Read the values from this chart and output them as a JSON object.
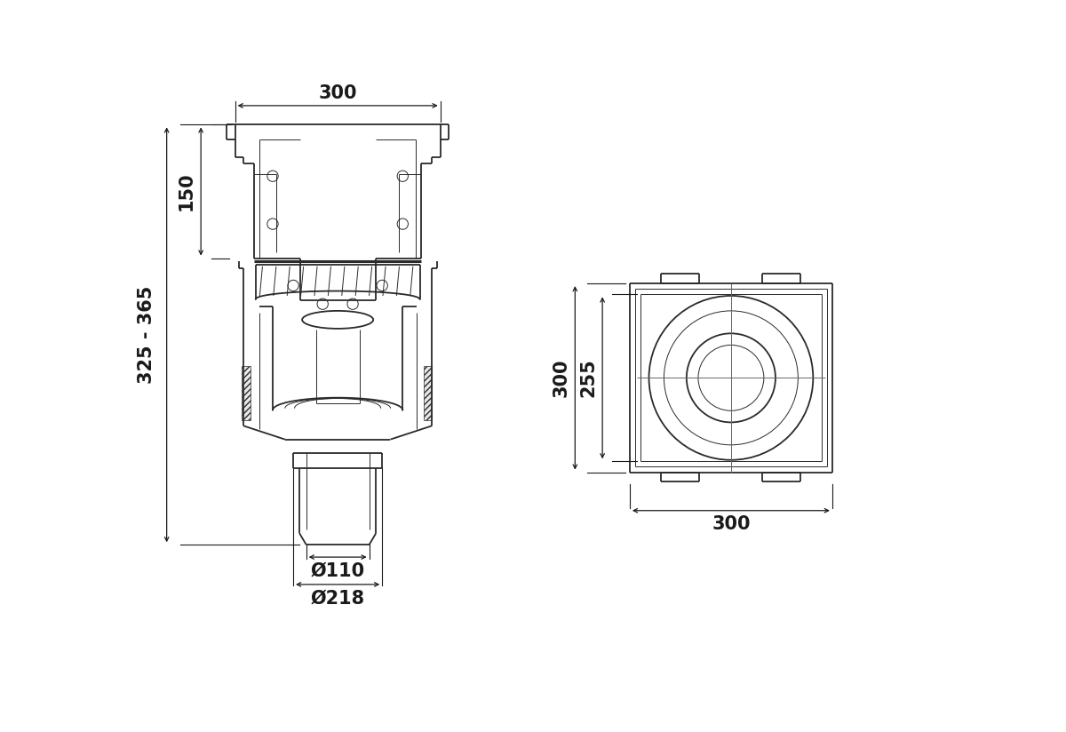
{
  "bg_color": "#ffffff",
  "line_color": "#2a2a2a",
  "dim_color": "#1a1a1a",
  "lw_main": 1.3,
  "lw_thin": 0.7,
  "lw_thick": 2.2,
  "annotations": {
    "width_300_top": "300",
    "height_150": "150",
    "height_325_365": "325 - 365",
    "diam_110": "Ø110",
    "diam_218": "Ø218",
    "right_width_300": "300",
    "right_height_300": "300",
    "right_height_255": "255"
  },
  "fontsize_main": 15,
  "fontsize_dim": 13
}
